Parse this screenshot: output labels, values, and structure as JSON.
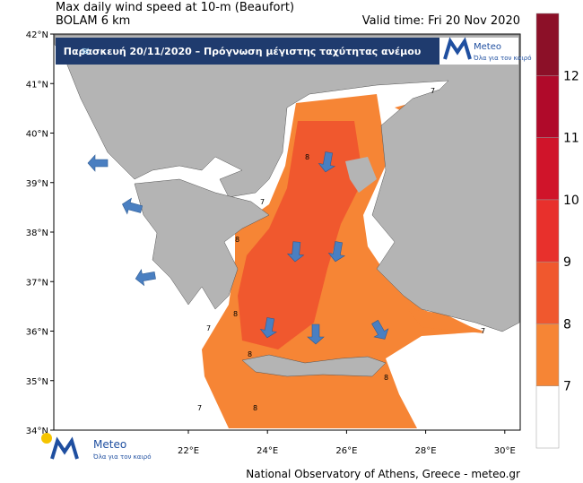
{
  "header": {
    "title": "Max daily wind speed at 10-m (Beaufort)",
    "model": "BOLAM 6 km",
    "valid_time": "Valid time: Fri 20 Nov 2020"
  },
  "banner": {
    "text": "Παρασκευή 20/11/2020 – Πρόγνωση μέγιστης ταχύτητας ανέμου",
    "logo": "Meteo",
    "tagline": "Όλα για τον καιρό"
  },
  "map": {
    "lat_ticks": [
      {
        "value": 42,
        "label": "42°N"
      },
      {
        "value": 41,
        "label": "41°N"
      },
      {
        "value": 40,
        "label": "40°N"
      },
      {
        "value": 39,
        "label": "39°N"
      },
      {
        "value": 38,
        "label": "38°N"
      },
      {
        "value": 37,
        "label": "37°N"
      },
      {
        "value": 36,
        "label": "36°N"
      },
      {
        "value": 35,
        "label": "35°N"
      },
      {
        "value": 34,
        "label": "34°N"
      }
    ],
    "lon_ticks": [
      {
        "value": 22,
        "label": "22°E"
      },
      {
        "value": 24,
        "label": "24°E"
      },
      {
        "value": 26,
        "label": "26°E"
      },
      {
        "value": 28,
        "label": "28°E"
      },
      {
        "value": 30,
        "label": "30°E"
      }
    ],
    "contour_labels": [
      "7",
      "8",
      "7",
      "8",
      "8",
      "7",
      "8",
      "8",
      "7",
      "8",
      "7"
    ]
  },
  "colorbar": {
    "levels": [
      7,
      8,
      9,
      10,
      11,
      12
    ],
    "colors": [
      "#ffffff",
      "#f68535",
      "#f0582e",
      "#e8302c",
      "#d0142a",
      "#b00a2a",
      "#8c1028"
    ]
  },
  "footer": {
    "logo": "Meteo",
    "tagline": "Όλα για τον καιρό",
    "credit": "National Observatory of Athens, Greece - meteo.gr"
  }
}
